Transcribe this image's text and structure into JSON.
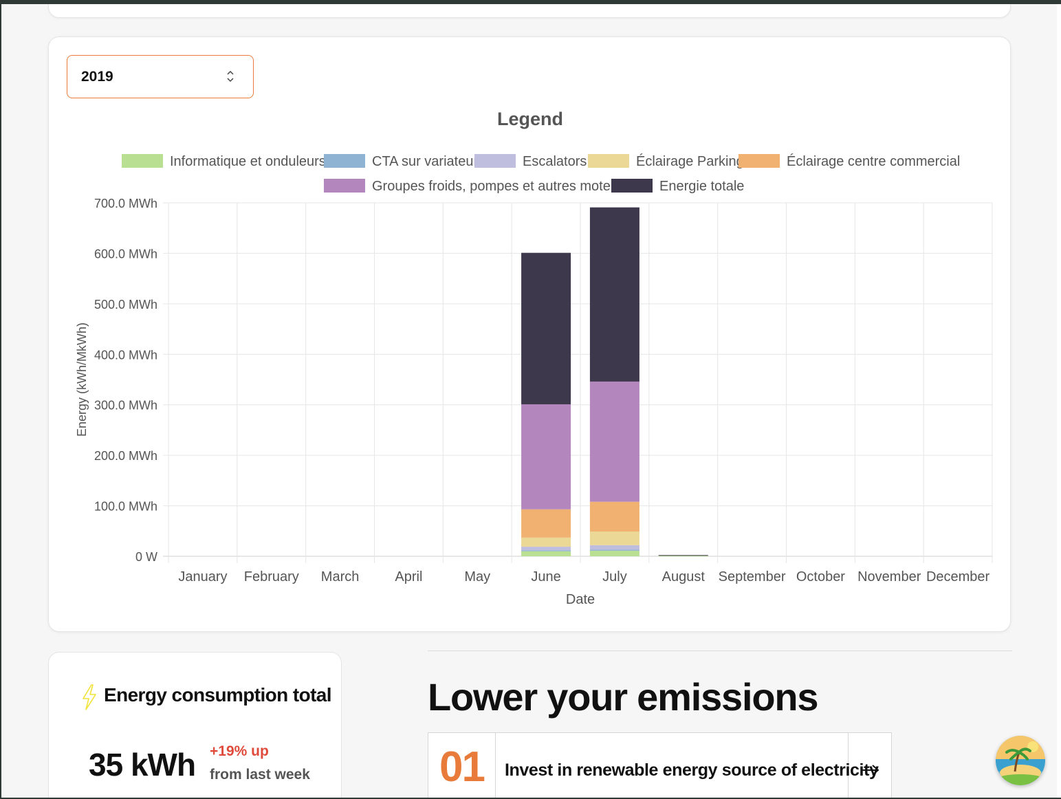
{
  "selector": {
    "year": "2019"
  },
  "chart_data": {
    "type": "bar",
    "stacked": true,
    "title": "Legend",
    "xlabel": "Date",
    "ylabel": "Energy (kWh/MkWh)",
    "ylim": [
      0,
      700
    ],
    "y_unit": "MWh",
    "y_tick_labels": [
      "0 W",
      "100.0 MWh",
      "200.0 MWh",
      "300.0 MWh",
      "400.0 MWh",
      "500.0 MWh",
      "600.0 MWh",
      "700.0 MWh"
    ],
    "categories": [
      "January",
      "February",
      "March",
      "April",
      "May",
      "June",
      "July",
      "August",
      "September",
      "October",
      "November",
      "December"
    ],
    "legend_position": "top",
    "grid": true,
    "series": [
      {
        "name": "Informatique et onduleurs",
        "color": "#b9df93",
        "values": [
          0,
          0,
          0,
          0,
          0,
          10,
          11,
          1,
          0,
          0,
          0,
          0
        ]
      },
      {
        "name": "CTA sur variateur",
        "color": "#8eb3d3",
        "values": [
          0,
          0,
          0,
          0,
          0,
          2,
          2,
          0,
          0,
          0,
          0,
          0
        ]
      },
      {
        "name": "Escalators",
        "color": "#c0bede",
        "values": [
          0,
          0,
          0,
          0,
          0,
          7,
          9,
          0,
          0,
          0,
          0,
          0
        ]
      },
      {
        "name": "Éclairage Parking",
        "color": "#ebd796",
        "values": [
          0,
          0,
          0,
          0,
          0,
          18,
          27,
          0,
          0,
          0,
          0,
          0
        ]
      },
      {
        "name": "Éclairage centre commercial",
        "color": "#f1b170",
        "values": [
          0,
          0,
          0,
          0,
          0,
          56,
          59,
          0,
          0,
          0,
          0,
          0
        ]
      },
      {
        "name": "Groupes froids, pompes et autres moteurs",
        "color": "#b386be",
        "values": [
          0,
          0,
          0,
          0,
          0,
          208,
          238,
          0,
          0,
          0,
          0,
          0
        ]
      },
      {
        "name": "Energie totale",
        "color": "#3e384c",
        "values": [
          0,
          0,
          0,
          0,
          0,
          300,
          345,
          1,
          0,
          0,
          0,
          0
        ]
      }
    ]
  },
  "energy_card": {
    "title": "Energy consumption total",
    "value": "35 kWh",
    "change": "+19% up",
    "change_label": "from last week",
    "change_color": "#e04a3a"
  },
  "emissions": {
    "title": "Lower your emissions",
    "tips": [
      {
        "number": "01",
        "text": "Invest in renewable energy source of electricity"
      }
    ]
  },
  "colors": {
    "accent": "#e87b3a"
  },
  "icons": [
    "chevron-updown-icon",
    "lightning-bolt-icon",
    "arrow-right-icon",
    "island-avatar-icon"
  ]
}
